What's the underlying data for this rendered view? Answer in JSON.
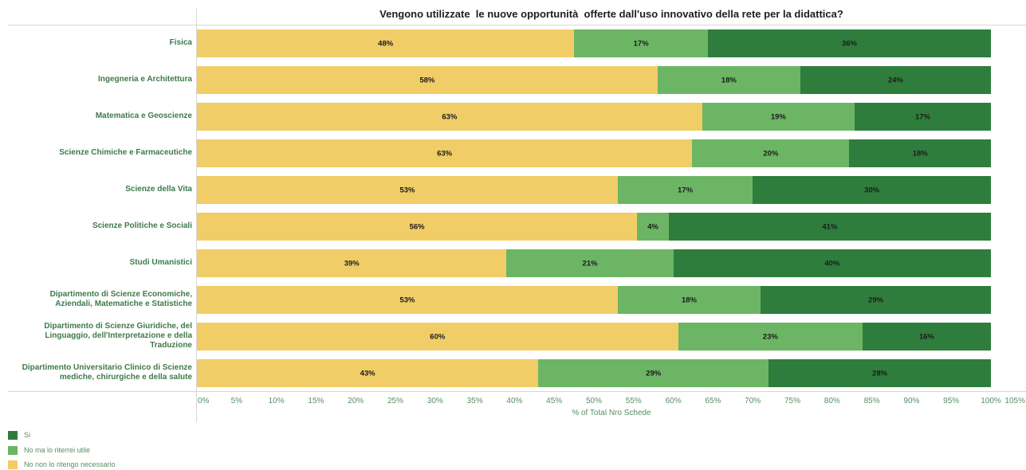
{
  "chart_data": {
    "type": "bar",
    "orientation": "horizontal",
    "stacked": true,
    "title": "Vengono utilizzate  le nuove opportunità  offerte dall'uso innovativo della rete per la didattica?",
    "xlabel": "% of Total Nro Schede",
    "xlim": [
      0,
      105
    ],
    "x_ticks": [
      "0%",
      "5%",
      "10%",
      "15%",
      "20%",
      "25%",
      "30%",
      "35%",
      "40%",
      "45%",
      "50%",
      "55%",
      "60%",
      "65%",
      "70%",
      "75%",
      "80%",
      "85%",
      "90%",
      "95%",
      "100%",
      "105%"
    ],
    "grid": false,
    "legend": "bottom-left",
    "categories": [
      "Fisica",
      "Ingegneria e Architettura",
      "Matematica e Geoscienze",
      "Scienze Chimiche e Farmaceutiche",
      "Scienze della Vita",
      "Scienze Politiche e Sociali",
      "Studi Umanistici",
      "Dipartimento di Scienze Economiche,\nAziendali, Matematiche e Statistiche",
      "Dipartimento di Scienze Giuridiche, del\nLinguaggio, dell'Interpretazione e della\nTraduzione",
      "Dipartimento Universitario Clinico di Scienze\nmediche, chirurgiche e della salute"
    ],
    "series": [
      {
        "name": "Si",
        "color": "#2f7d3c",
        "values": [
          36,
          24,
          17,
          18,
          30,
          41,
          40,
          29,
          16,
          28
        ],
        "labels": [
          "36%",
          "24%",
          "17%",
          "18%",
          "30%",
          "41%",
          "40%",
          "29%",
          "16%",
          "28%"
        ]
      },
      {
        "name": "No ma lo riterrei utile",
        "color": "#6cb564",
        "values": [
          17,
          18,
          19,
          20,
          17,
          4,
          21,
          18,
          23,
          29
        ],
        "labels": [
          "17%",
          "18%",
          "19%",
          "20%",
          "17%",
          "4%",
          "21%",
          "18%",
          "23%",
          "29%"
        ]
      },
      {
        "name": "No non lo ritengo necessario",
        "color": "#f1cd68",
        "values": [
          48,
          58,
          63,
          63,
          53,
          56,
          39,
          53,
          60,
          43
        ],
        "labels": [
          "48%",
          "58%",
          "63%",
          "63%",
          "53%",
          "56%",
          "39%",
          "53%",
          "60%",
          "43%"
        ]
      }
    ]
  }
}
